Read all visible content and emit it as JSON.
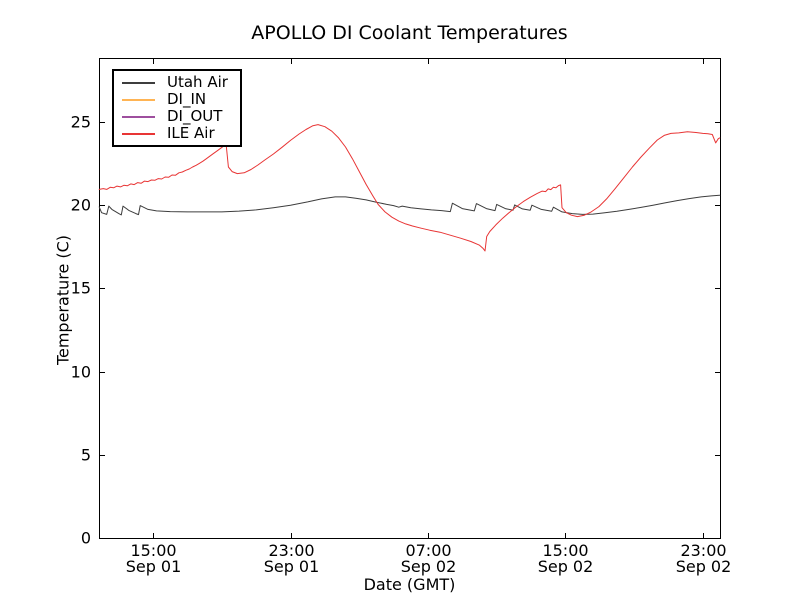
{
  "figure": {
    "background": "#ffffff",
    "axis_color": "#000000"
  },
  "chart_data": {
    "type": "line",
    "title": "APOLLO DI Coolant Temperatures",
    "xlabel": "Date (GMT)",
    "ylabel": "Temperature (C)",
    "grid": false,
    "legend_position": "upper left",
    "x_unit": "hours after Sep 01 12:00 GMT",
    "xlim": [
      -0.15,
      36.0
    ],
    "ylim": [
      0,
      28.85
    ],
    "y_ticks": [
      0,
      5,
      10,
      15,
      20,
      25
    ],
    "x_ticks": [
      {
        "h": 3,
        "time": "15:00",
        "date": "Sep 01"
      },
      {
        "h": 11,
        "time": "23:00",
        "date": "Sep 01"
      },
      {
        "h": 19,
        "time": "07:00",
        "date": "Sep 02"
      },
      {
        "h": 27,
        "time": "15:00",
        "date": "Sep 02"
      },
      {
        "h": 35,
        "time": "23:00",
        "date": "Sep 02"
      }
    ],
    "series": [
      {
        "name": "Utah Air",
        "color": "#3d3d3d",
        "points": [
          [
            -0.14,
            19.9
          ],
          [
            0.0,
            19.55
          ],
          [
            0.3,
            19.45
          ],
          [
            0.42,
            19.95
          ],
          [
            0.6,
            19.75
          ],
          [
            1.0,
            19.5
          ],
          [
            1.15,
            19.42
          ],
          [
            1.25,
            19.95
          ],
          [
            1.6,
            19.68
          ],
          [
            2.0,
            19.5
          ],
          [
            2.15,
            19.44
          ],
          [
            2.25,
            19.98
          ],
          [
            2.7,
            19.75
          ],
          [
            3.2,
            19.66
          ],
          [
            4.0,
            19.62
          ],
          [
            5.0,
            19.6
          ],
          [
            6.0,
            19.6
          ],
          [
            7.0,
            19.6
          ],
          [
            8.0,
            19.65
          ],
          [
            9.0,
            19.72
          ],
          [
            10.0,
            19.85
          ],
          [
            11.0,
            20.0
          ],
          [
            12.0,
            20.2
          ],
          [
            12.8,
            20.38
          ],
          [
            13.6,
            20.5
          ],
          [
            14.2,
            20.5
          ],
          [
            14.8,
            20.42
          ],
          [
            15.4,
            20.32
          ],
          [
            16.0,
            20.18
          ],
          [
            16.6,
            20.05
          ],
          [
            17.0,
            19.98
          ],
          [
            17.3,
            19.88
          ],
          [
            17.5,
            19.95
          ],
          [
            18.0,
            19.85
          ],
          [
            18.6,
            19.78
          ],
          [
            19.2,
            19.72
          ],
          [
            19.8,
            19.68
          ],
          [
            20.3,
            19.62
          ],
          [
            20.42,
            20.12
          ],
          [
            21.0,
            19.8
          ],
          [
            21.7,
            19.66
          ],
          [
            21.82,
            20.1
          ],
          [
            22.4,
            19.8
          ],
          [
            22.9,
            19.68
          ],
          [
            23.0,
            20.05
          ],
          [
            23.5,
            19.8
          ],
          [
            23.95,
            19.7
          ],
          [
            24.05,
            20.02
          ],
          [
            24.5,
            19.78
          ],
          [
            24.95,
            19.7
          ],
          [
            25.05,
            20.0
          ],
          [
            25.6,
            19.75
          ],
          [
            26.2,
            19.64
          ],
          [
            26.3,
            19.88
          ],
          [
            26.8,
            19.6
          ],
          [
            27.4,
            19.5
          ],
          [
            28.0,
            19.45
          ],
          [
            28.6,
            19.47
          ],
          [
            29.3,
            19.55
          ],
          [
            30.0,
            19.64
          ],
          [
            30.7,
            19.75
          ],
          [
            31.4,
            19.87
          ],
          [
            32.1,
            20.0
          ],
          [
            32.8,
            20.14
          ],
          [
            33.5,
            20.28
          ],
          [
            34.2,
            20.4
          ],
          [
            34.9,
            20.5
          ],
          [
            35.5,
            20.56
          ],
          [
            35.98,
            20.6
          ]
        ]
      },
      {
        "name": "DI_IN",
        "color": "#ffb454",
        "points": []
      },
      {
        "name": "DI_OUT",
        "color": "#9e4f9e",
        "points": []
      },
      {
        "name": "ILE Air",
        "color": "#e83535",
        "points": [
          [
            -0.14,
            20.95
          ],
          [
            0.1,
            21.0
          ],
          [
            0.3,
            20.95
          ],
          [
            0.5,
            21.08
          ],
          [
            0.7,
            21.05
          ],
          [
            0.9,
            21.15
          ],
          [
            1.1,
            21.1
          ],
          [
            1.3,
            21.2
          ],
          [
            1.5,
            21.17
          ],
          [
            1.7,
            21.28
          ],
          [
            1.9,
            21.24
          ],
          [
            2.1,
            21.36
          ],
          [
            2.3,
            21.32
          ],
          [
            2.5,
            21.45
          ],
          [
            2.7,
            21.42
          ],
          [
            2.9,
            21.52
          ],
          [
            3.1,
            21.5
          ],
          [
            3.3,
            21.6
          ],
          [
            3.5,
            21.58
          ],
          [
            3.7,
            21.7
          ],
          [
            3.9,
            21.68
          ],
          [
            4.1,
            21.82
          ],
          [
            4.3,
            21.8
          ],
          [
            4.5,
            21.95
          ],
          [
            4.7,
            22.0
          ],
          [
            4.9,
            22.1
          ],
          [
            5.1,
            22.18
          ],
          [
            5.3,
            22.3
          ],
          [
            5.5,
            22.4
          ],
          [
            5.7,
            22.52
          ],
          [
            5.9,
            22.65
          ],
          [
            6.1,
            22.8
          ],
          [
            6.3,
            22.95
          ],
          [
            6.5,
            23.1
          ],
          [
            6.7,
            23.25
          ],
          [
            6.9,
            23.4
          ],
          [
            7.1,
            23.55
          ],
          [
            7.25,
            23.68
          ],
          [
            7.38,
            22.3
          ],
          [
            7.6,
            22.02
          ],
          [
            7.9,
            21.9
          ],
          [
            8.3,
            21.95
          ],
          [
            8.7,
            22.15
          ],
          [
            9.1,
            22.42
          ],
          [
            9.5,
            22.72
          ],
          [
            10.0,
            23.08
          ],
          [
            10.5,
            23.48
          ],
          [
            11.0,
            23.9
          ],
          [
            11.5,
            24.28
          ],
          [
            11.9,
            24.55
          ],
          [
            12.3,
            24.78
          ],
          [
            12.6,
            24.85
          ],
          [
            13.0,
            24.72
          ],
          [
            13.4,
            24.45
          ],
          [
            13.8,
            24.05
          ],
          [
            14.2,
            23.5
          ],
          [
            14.6,
            22.8
          ],
          [
            15.0,
            22.02
          ],
          [
            15.4,
            21.25
          ],
          [
            15.8,
            20.55
          ],
          [
            16.1,
            20.05
          ],
          [
            16.5,
            19.6
          ],
          [
            16.9,
            19.28
          ],
          [
            17.3,
            19.05
          ],
          [
            17.7,
            18.88
          ],
          [
            18.1,
            18.75
          ],
          [
            18.6,
            18.62
          ],
          [
            19.1,
            18.5
          ],
          [
            19.7,
            18.38
          ],
          [
            20.3,
            18.2
          ],
          [
            20.9,
            18.02
          ],
          [
            21.5,
            17.82
          ],
          [
            22.0,
            17.6
          ],
          [
            22.2,
            17.42
          ],
          [
            22.32,
            17.25
          ],
          [
            22.42,
            18.12
          ],
          [
            22.6,
            18.42
          ],
          [
            22.95,
            18.82
          ],
          [
            23.35,
            19.22
          ],
          [
            23.75,
            19.58
          ],
          [
            24.15,
            19.92
          ],
          [
            24.55,
            20.22
          ],
          [
            24.95,
            20.48
          ],
          [
            25.35,
            20.7
          ],
          [
            25.65,
            20.85
          ],
          [
            25.85,
            20.82
          ],
          [
            26.0,
            20.98
          ],
          [
            26.15,
            20.94
          ],
          [
            26.3,
            21.08
          ],
          [
            26.45,
            21.05
          ],
          [
            26.6,
            21.18
          ],
          [
            26.72,
            21.22
          ],
          [
            26.8,
            19.85
          ],
          [
            27.05,
            19.55
          ],
          [
            27.35,
            19.4
          ],
          [
            27.7,
            19.32
          ],
          [
            28.1,
            19.4
          ],
          [
            28.5,
            19.6
          ],
          [
            28.95,
            19.92
          ],
          [
            29.4,
            20.38
          ],
          [
            29.9,
            21.0
          ],
          [
            30.4,
            21.65
          ],
          [
            30.9,
            22.3
          ],
          [
            31.4,
            22.9
          ],
          [
            31.9,
            23.45
          ],
          [
            32.35,
            23.92
          ],
          [
            32.75,
            24.2
          ],
          [
            33.15,
            24.32
          ],
          [
            33.6,
            24.35
          ],
          [
            34.1,
            24.42
          ],
          [
            34.6,
            24.37
          ],
          [
            35.0,
            24.32
          ],
          [
            35.3,
            24.3
          ],
          [
            35.55,
            24.25
          ],
          [
            35.75,
            23.75
          ],
          [
            35.9,
            24.0
          ],
          [
            35.98,
            24.05
          ]
        ]
      }
    ]
  }
}
